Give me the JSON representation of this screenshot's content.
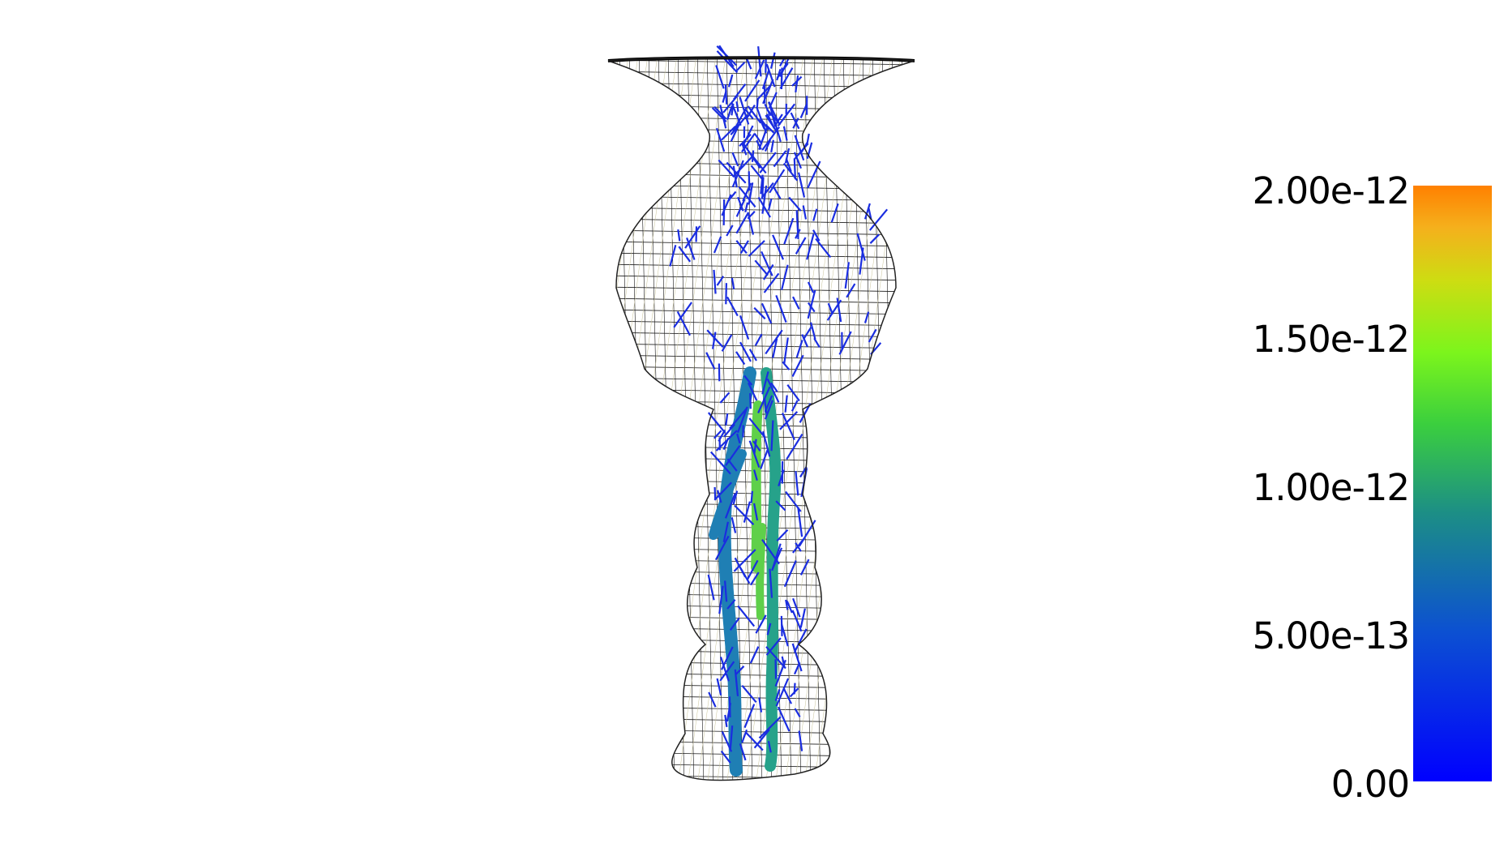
{
  "scene": {
    "wireframe_color": "#1a1a1a",
    "inner_mesh_color": "#c8c39a",
    "arrow_color": "#1a2de0",
    "tube_colors": [
      "#1f7fb4",
      "#26a28a",
      "#5fd04a"
    ]
  },
  "colorbar": {
    "ticks": [
      "2.00e-12",
      "1.50e-12",
      "1.00e-12",
      "5.00e-13",
      "0.00"
    ],
    "values": [
      2e-12,
      1.5e-12,
      1e-12,
      5e-13,
      0
    ],
    "range": [
      0,
      2e-12
    ],
    "colors": [
      "#0000ff",
      "#0b4ad0",
      "#1e8e8a",
      "#3ccf40",
      "#7cf51a",
      "#c9de10",
      "#f3b31d",
      "#ff8000"
    ]
  }
}
